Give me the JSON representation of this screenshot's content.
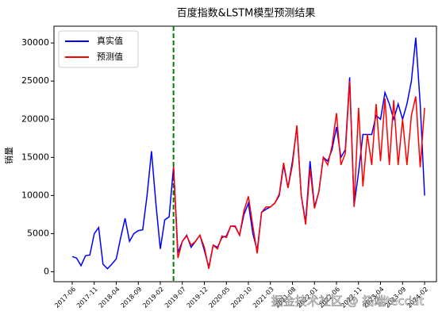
{
  "chart_data": {
    "type": "line",
    "title": "百度指数&LSTM模型预测结果",
    "ylabel": "销量",
    "x": [
      "2017-06",
      "2017-07",
      "2017-08",
      "2017-09",
      "2017-10",
      "2017-11",
      "2017-12",
      "2018-01",
      "2018-02",
      "2018-03",
      "2018-04",
      "2018-05",
      "2018-06",
      "2018-07",
      "2018-08",
      "2018-09",
      "2018-10",
      "2018-11",
      "2018-12",
      "2019-01",
      "2019-02",
      "2019-03",
      "2019-04",
      "2019-05",
      "2019-06",
      "2019-07",
      "2019-08",
      "2019-09",
      "2019-10",
      "2019-11",
      "2019-12",
      "2020-01",
      "2020-02",
      "2020-03",
      "2020-04",
      "2020-05",
      "2020-06",
      "2020-07",
      "2020-08",
      "2020-09",
      "2020-10",
      "2020-11",
      "2020-12",
      "2021-01",
      "2021-02",
      "2021-03",
      "2021-04",
      "2021-05",
      "2021-06",
      "2021-07",
      "2021-08",
      "2021-09",
      "2021-10",
      "2021-11",
      "2021-12",
      "2022-01",
      "2022-02",
      "2022-03",
      "2022-04",
      "2022-05",
      "2022-06",
      "2022-07",
      "2022-08",
      "2022-09",
      "2022-10",
      "2022-11",
      "2022-12",
      "2023-01",
      "2023-02",
      "2023-03",
      "2023-04",
      "2023-05",
      "2023-06",
      "2023-07",
      "2023-08",
      "2023-09",
      "2023-10",
      "2023-11",
      "2023-12",
      "2024-01",
      "2024-02"
    ],
    "xticks": [
      "2017-06",
      "2017-11",
      "2018-04",
      "2018-09",
      "2019-02",
      "2019-07",
      "2019-12",
      "2020-05",
      "2020-10",
      "2021-03",
      "2021-08",
      "2022-01",
      "2022-06",
      "2022-11",
      "2023-04",
      "2023-09",
      "2024-02"
    ],
    "split": "2019-05",
    "split_color": "green",
    "series": [
      {
        "name": "真实值",
        "color": "#0000ff",
        "values": [
          2000,
          1800,
          800,
          2100,
          2200,
          5000,
          5800,
          1000,
          400,
          1000,
          1700,
          4500,
          7000,
          4000,
          5000,
          5400,
          5500,
          10000,
          15800,
          9000,
          3000,
          6800,
          7200,
          13800,
          2500,
          4000,
          4800,
          3200,
          4000,
          4800,
          2800,
          600,
          3500,
          3200,
          4500,
          4700,
          6000,
          5900,
          4800,
          7500,
          9000,
          5000,
          2800,
          7800,
          8200,
          8500,
          9000,
          10000,
          14000,
          11000,
          14500,
          19000,
          10000,
          6500,
          14500,
          8500,
          10500,
          15000,
          14500,
          16000,
          19000,
          15000,
          16000,
          25500,
          8700,
          13000,
          18000,
          18000,
          18000,
          20500,
          20000,
          23500,
          22000,
          20000,
          22000,
          20000,
          22000,
          25000,
          30700,
          22000,
          10000
        ]
      },
      {
        "name": "预测值",
        "color": "#ff0000",
        "values": [
          null,
          null,
          null,
          null,
          null,
          null,
          null,
          null,
          null,
          null,
          null,
          null,
          null,
          null,
          null,
          null,
          null,
          null,
          null,
          null,
          null,
          null,
          null,
          13800,
          1800,
          4000,
          4700,
          3500,
          4000,
          4800,
          3200,
          400,
          3500,
          3000,
          4700,
          4500,
          6000,
          6000,
          4800,
          8000,
          9900,
          6000,
          2400,
          7800,
          8500,
          8500,
          9000,
          10200,
          14300,
          11000,
          14000,
          19200,
          10000,
          6200,
          13500,
          8300,
          10500,
          15000,
          14000,
          16500,
          20800,
          14000,
          15500,
          25000,
          8500,
          21500,
          11200,
          18000,
          14000,
          22000,
          14500,
          22700,
          14000,
          22500,
          14000,
          20000,
          14000,
          20500,
          23000,
          13700,
          21500
        ]
      }
    ],
    "ylim": [
      -1300,
      32200
    ],
    "yticks": [
      0,
      5000,
      10000,
      15000,
      20000,
      25000,
      30000
    ],
    "legend": "upper left",
    "watermark": "掘金技术社区 @ 拓端tecdat"
  }
}
